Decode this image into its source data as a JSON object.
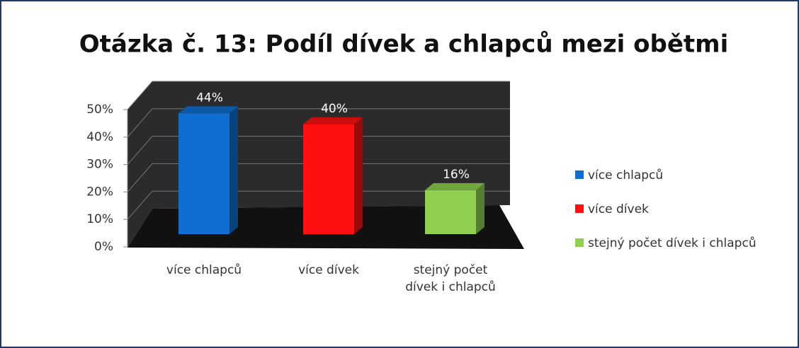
{
  "chart_data": {
    "type": "bar3d",
    "title": "Otázka č. 13: Podíl dívek a chlapců mezi obětmi",
    "categories": [
      "více chlapců",
      "více dívek",
      "stejný počet dívek i chlapců"
    ],
    "values": [
      44,
      40,
      16
    ],
    "value_labels": [
      "44%",
      "40%",
      "16%"
    ],
    "colors": [
      "#0f6fd1",
      "#ff1010",
      "#8fd14f"
    ],
    "ylim": [
      0,
      50
    ],
    "yticks": [
      {
        "value": 0,
        "label": "0%"
      },
      {
        "value": 10,
        "label": "10%"
      },
      {
        "value": 20,
        "label": "20%"
      },
      {
        "value": 30,
        "label": "30%"
      },
      {
        "value": 40,
        "label": "40%"
      },
      {
        "value": 50,
        "label": "50%"
      }
    ],
    "grid": true,
    "legend": "right"
  }
}
